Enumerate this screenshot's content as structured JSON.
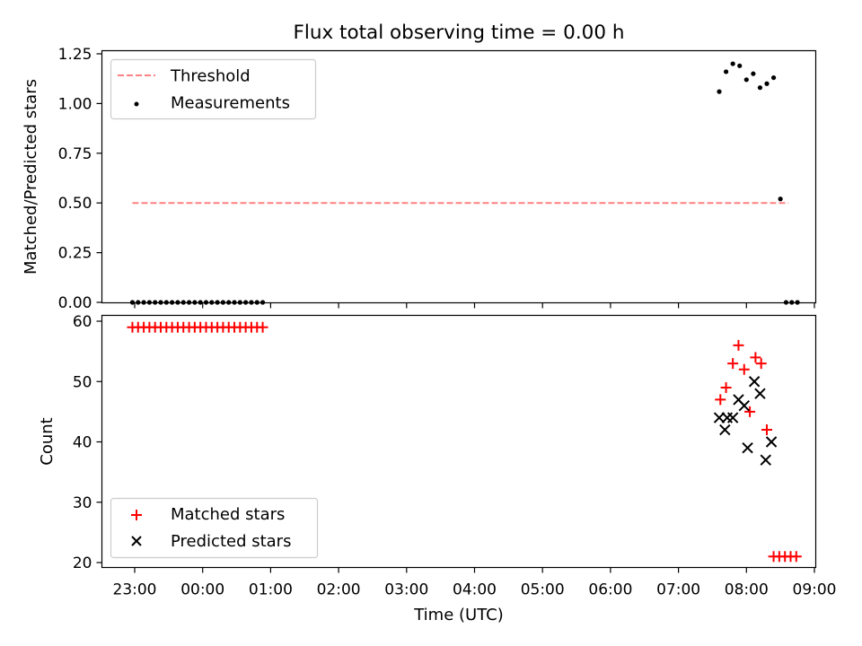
{
  "chart_data": [
    {
      "type": "scatter",
      "title": "Flux total observing time = 0.00 h",
      "ylabel": "Matched/Predicted stars",
      "xlabel": "",
      "ylim": [
        0,
        1.25
      ],
      "yticks": [
        "0.00",
        "0.25",
        "0.50",
        "0.75",
        "1.00",
        "1.25"
      ],
      "legend_position": "top-left",
      "series": [
        {
          "name": "Threshold",
          "kind": "dashed-line",
          "color": "#ff8080",
          "points": [
            [
              "22:58",
              0.5
            ],
            [
              "08:37",
              0.5
            ]
          ]
        },
        {
          "name": "Measurements",
          "kind": "dot",
          "color": "#000000",
          "points": [
            [
              "22:58",
              0
            ],
            [
              "23:03",
              0
            ],
            [
              "23:08",
              0
            ],
            [
              "23:13",
              0
            ],
            [
              "23:18",
              0
            ],
            [
              "23:23",
              0
            ],
            [
              "23:28",
              0
            ],
            [
              "23:33",
              0
            ],
            [
              "23:38",
              0
            ],
            [
              "23:43",
              0
            ],
            [
              "23:48",
              0
            ],
            [
              "23:53",
              0
            ],
            [
              "23:58",
              0
            ],
            [
              "00:03",
              0
            ],
            [
              "00:08",
              0
            ],
            [
              "00:13",
              0
            ],
            [
              "00:18",
              0
            ],
            [
              "00:23",
              0
            ],
            [
              "00:28",
              0
            ],
            [
              "00:33",
              0
            ],
            [
              "00:38",
              0
            ],
            [
              "00:43",
              0
            ],
            [
              "00:48",
              0
            ],
            [
              "00:53",
              0
            ],
            [
              "07:36",
              1.06
            ],
            [
              "07:42",
              1.16
            ],
            [
              "07:48",
              1.2
            ],
            [
              "07:54",
              1.19
            ],
            [
              "08:00",
              1.12
            ],
            [
              "08:06",
              1.15
            ],
            [
              "08:12",
              1.08
            ],
            [
              "08:18",
              1.1
            ],
            [
              "08:24",
              1.13
            ],
            [
              "08:30",
              0.52
            ],
            [
              "08:35",
              0
            ],
            [
              "08:40",
              0
            ],
            [
              "08:45",
              0
            ]
          ]
        }
      ]
    },
    {
      "type": "scatter",
      "title": "",
      "ylabel": "Count",
      "xlabel": "Time (UTC)",
      "ylim": [
        19.2,
        61
      ],
      "yticks": [
        "20",
        "30",
        "40",
        "50",
        "60"
      ],
      "xticks": [
        "23:00",
        "00:00",
        "01:00",
        "02:00",
        "03:00",
        "04:00",
        "05:00",
        "06:00",
        "07:00",
        "08:00",
        "09:00"
      ],
      "legend_position": "bottom-left",
      "series": [
        {
          "name": "Matched stars",
          "kind": "plus",
          "color": "#ff0000",
          "points": [
            [
              "22:58",
              59
            ],
            [
              "23:03",
              59
            ],
            [
              "23:08",
              59
            ],
            [
              "23:13",
              59
            ],
            [
              "23:18",
              59
            ],
            [
              "23:23",
              59
            ],
            [
              "23:28",
              59
            ],
            [
              "23:33",
              59
            ],
            [
              "23:38",
              59
            ],
            [
              "23:43",
              59
            ],
            [
              "23:48",
              59
            ],
            [
              "23:53",
              59
            ],
            [
              "23:58",
              59
            ],
            [
              "00:03",
              59
            ],
            [
              "00:08",
              59
            ],
            [
              "00:13",
              59
            ],
            [
              "00:18",
              59
            ],
            [
              "00:23",
              59
            ],
            [
              "00:28",
              59
            ],
            [
              "00:33",
              59
            ],
            [
              "00:38",
              59
            ],
            [
              "00:43",
              59
            ],
            [
              "00:48",
              59
            ],
            [
              "00:53",
              59
            ],
            [
              "07:37",
              47
            ],
            [
              "07:42",
              49
            ],
            [
              "07:48",
              53
            ],
            [
              "07:53",
              56
            ],
            [
              "07:58",
              52
            ],
            [
              "08:03",
              45
            ],
            [
              "08:08",
              54
            ],
            [
              "08:13",
              53
            ],
            [
              "08:18",
              42
            ],
            [
              "08:24",
              21
            ],
            [
              "08:29",
              21
            ],
            [
              "08:34",
              21
            ],
            [
              "08:39",
              21
            ],
            [
              "08:44",
              21
            ]
          ]
        },
        {
          "name": "Predicted stars",
          "kind": "x",
          "color": "#000000",
          "points": [
            [
              "07:36",
              44
            ],
            [
              "07:41",
              42
            ],
            [
              "07:43",
              44
            ],
            [
              "07:48",
              44
            ],
            [
              "07:53",
              47
            ],
            [
              "07:58",
              46
            ],
            [
              "08:01",
              39
            ],
            [
              "08:07",
              50
            ],
            [
              "08:12",
              48
            ],
            [
              "08:17",
              37
            ],
            [
              "08:22",
              40
            ]
          ]
        }
      ]
    }
  ]
}
